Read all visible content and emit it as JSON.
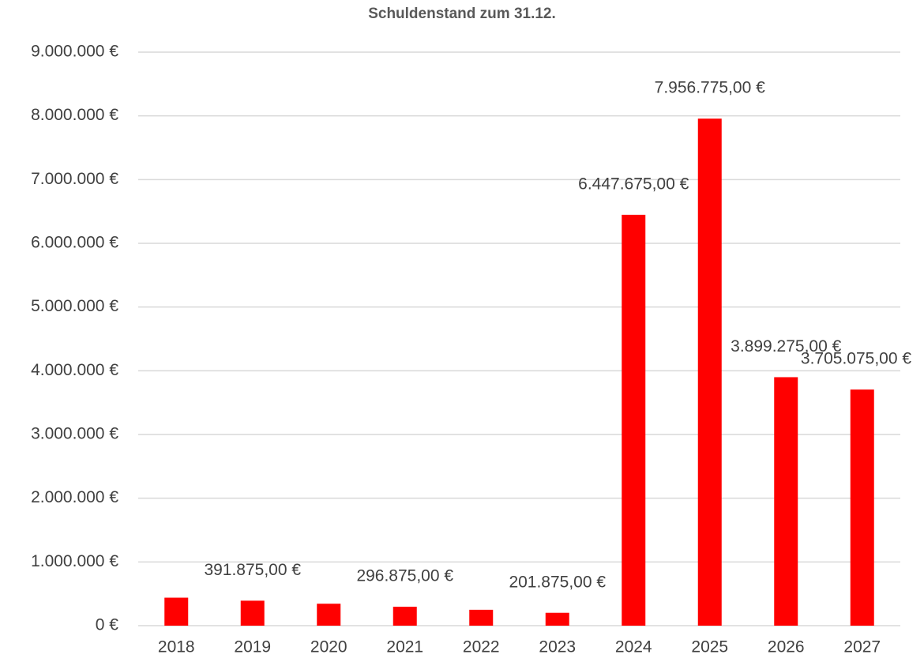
{
  "chart_data": {
    "type": "bar",
    "title": "Schuldenstand zum 31.12.",
    "categories": [
      "2018",
      "2019",
      "2020",
      "2021",
      "2022",
      "2023",
      "2024",
      "2025",
      "2026",
      "2027"
    ],
    "values": [
      439375,
      391875,
      344375,
      296875,
      249375,
      201875,
      6447675,
      7956775,
      3899275,
      3705075
    ],
    "value_labels": [
      null,
      "391.875,00 €",
      null,
      "296.875,00 €",
      null,
      "201.875,00 €",
      "6.447.675,00 €",
      "7.956.775,00 €",
      "3.899.275,00 €",
      "3.705.075,00 €"
    ],
    "color": "#ff0000",
    "ylim": [
      0,
      9000000
    ],
    "yticks": [
      {
        "value": 0,
        "label": "0 €"
      },
      {
        "value": 1000000,
        "label": "1.000.000 €"
      },
      {
        "value": 2000000,
        "label": "2.000.000 €"
      },
      {
        "value": 3000000,
        "label": "3.000.000 €"
      },
      {
        "value": 4000000,
        "label": "4.000.000 €"
      },
      {
        "value": 5000000,
        "label": "5.000.000 €"
      },
      {
        "value": 6000000,
        "label": "6.000.000 €"
      },
      {
        "value": 7000000,
        "label": "7.000.000 €"
      },
      {
        "value": 8000000,
        "label": "8.000.000 €"
      },
      {
        "value": 9000000,
        "label": "9.000.000 €"
      }
    ],
    "grid": true
  }
}
